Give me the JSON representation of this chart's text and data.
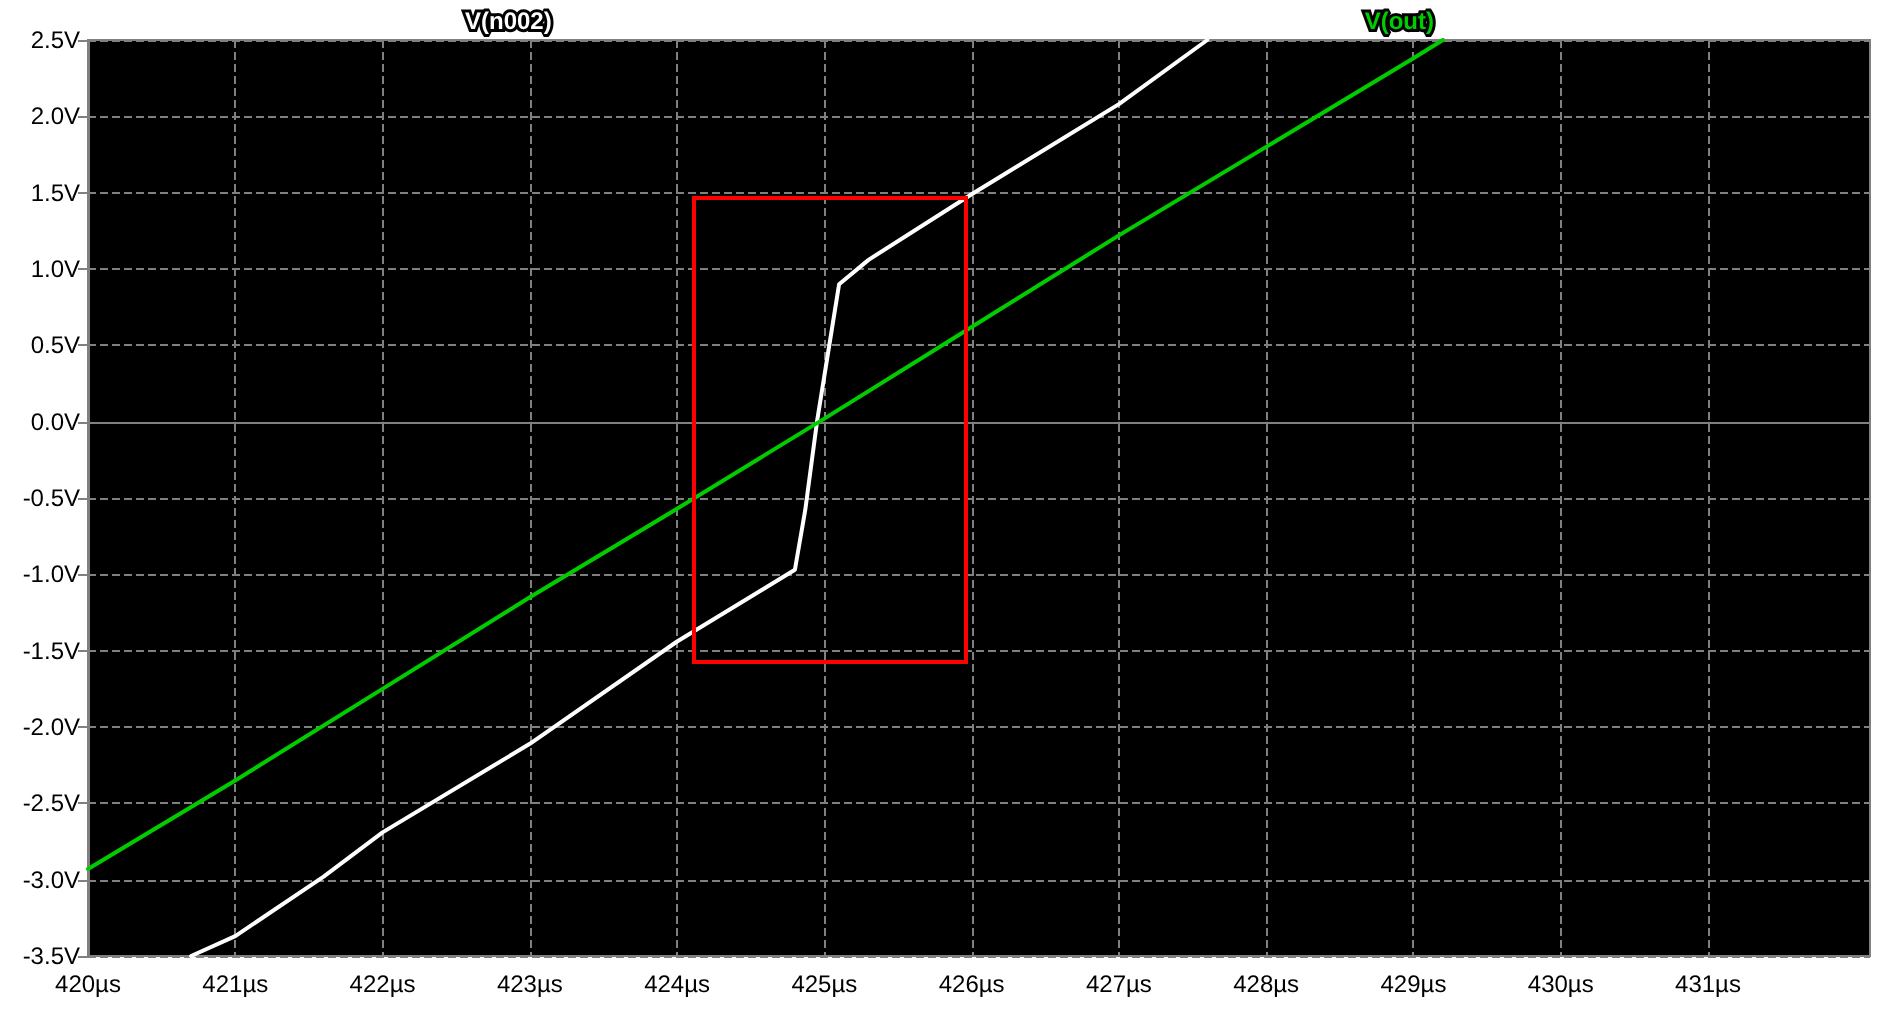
{
  "chart_data": {
    "type": "line",
    "series": [
      {
        "name": "V(n002)",
        "color": "#ffffff",
        "x": [
          420.7,
          421,
          421.6,
          422,
          423,
          424,
          424.8,
          424.87,
          424.95,
          425.05,
          425.1,
          425.3,
          426,
          427,
          427.6
        ],
        "values": [
          -3.5,
          -3.37,
          -2.98,
          -2.69,
          -2.11,
          -1.44,
          -0.97,
          -0.58,
          0.0,
          0.6,
          0.9,
          1.06,
          1.49,
          2.08,
          2.5
        ]
      },
      {
        "name": "V(out)",
        "color": "#00cc00",
        "x": [
          420,
          421,
          422,
          423,
          424,
          425,
          426,
          427,
          428,
          429,
          429.2
        ],
        "values": [
          -2.93,
          -2.35,
          -1.75,
          -1.15,
          -0.57,
          0.02,
          0.62,
          1.22,
          1.8,
          2.38,
          2.5
        ]
      }
    ],
    "xlim": [
      420,
      432.1
    ],
    "xticks": [
      {
        "value": 420,
        "label": "420µs"
      },
      {
        "value": 421,
        "label": "421µs"
      },
      {
        "value": 422,
        "label": "422µs"
      },
      {
        "value": 423,
        "label": "423µs"
      },
      {
        "value": 424,
        "label": "424µs"
      },
      {
        "value": 425,
        "label": "425µs"
      },
      {
        "value": 426,
        "label": "426µs"
      },
      {
        "value": 427,
        "label": "427µs"
      },
      {
        "value": 428,
        "label": "428µs"
      },
      {
        "value": 429,
        "label": "429µs"
      },
      {
        "value": 430,
        "label": "430µs"
      },
      {
        "value": 431,
        "label": "431µs"
      }
    ],
    "ylim": [
      -3.5,
      2.5
    ],
    "yticks": [
      {
        "value": -3.5,
        "label": "-3.5V"
      },
      {
        "value": -3,
        "label": "-3.0V"
      },
      {
        "value": -2.5,
        "label": "-2.5V"
      },
      {
        "value": -2,
        "label": "-2.0V"
      },
      {
        "value": -1.5,
        "label": "-1.5V"
      },
      {
        "value": -1,
        "label": "-1.0V"
      },
      {
        "value": -0.5,
        "label": "-0.5V"
      },
      {
        "value": 0,
        "label": "0.0V"
      },
      {
        "value": 0.5,
        "label": "0.5V"
      },
      {
        "value": 1,
        "label": "1.0V"
      },
      {
        "value": 1.5,
        "label": "1.5V"
      },
      {
        "value": 2,
        "label": "2.0V"
      },
      {
        "value": 2.5,
        "label": "2.5V"
      }
    ],
    "grid": true,
    "legend": "top",
    "marker": "none",
    "line_style": "solid"
  }
}
